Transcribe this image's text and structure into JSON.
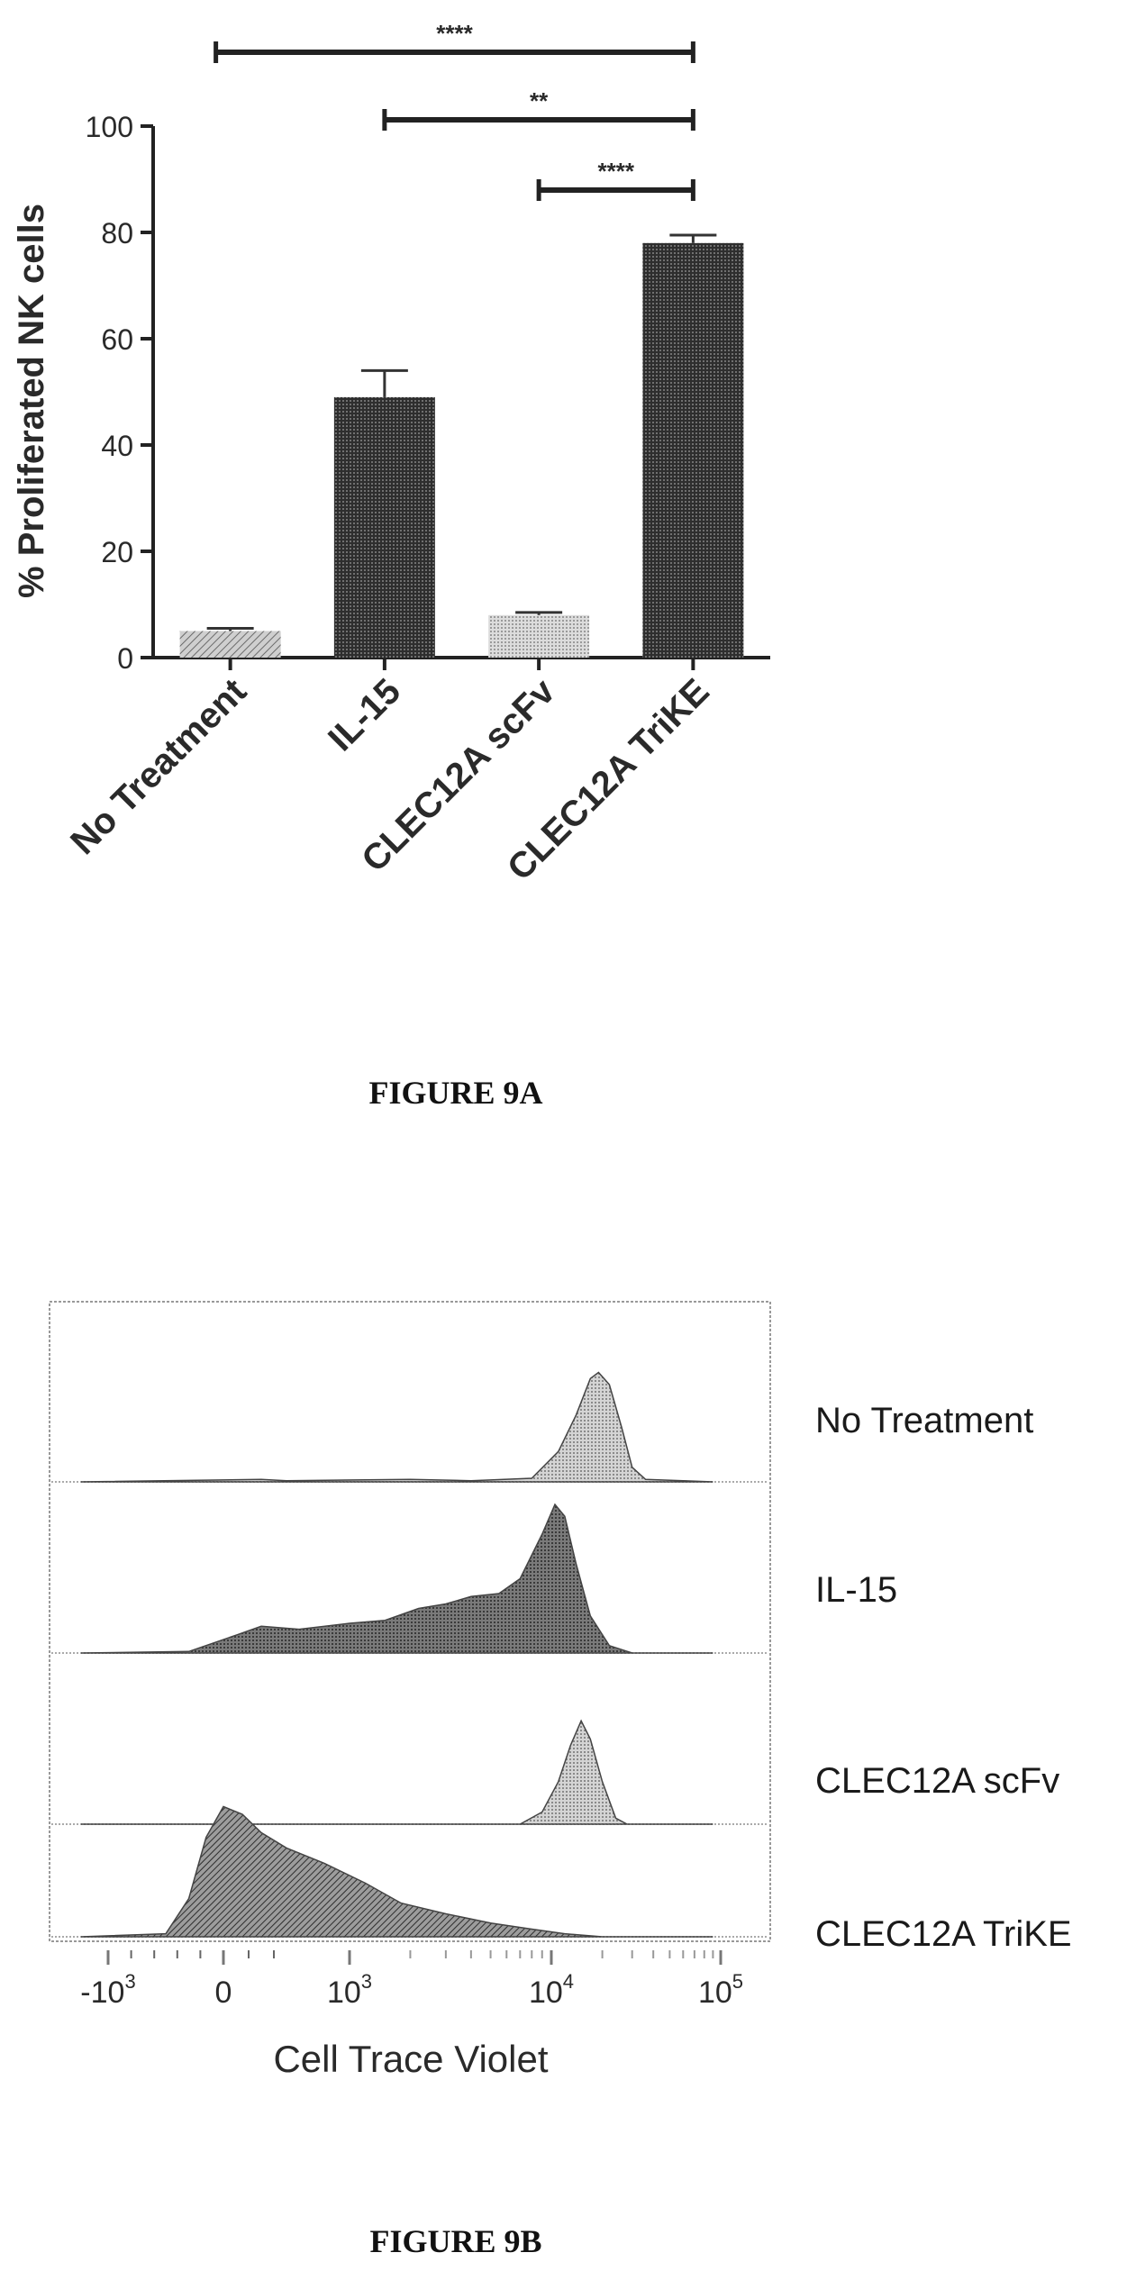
{
  "chart_data": [
    {
      "type": "bar",
      "ylabel": "% Proliferated NK cells",
      "ylim": [
        0,
        100
      ],
      "yticks": [
        "0",
        "20",
        "40",
        "60",
        "80",
        "100"
      ],
      "categories": [
        "No Treatment",
        "IL-15",
        "CLEC12A scFv",
        "CLEC12A TriKE"
      ],
      "values": [
        5,
        49,
        8,
        78
      ],
      "error": [
        0.5,
        5,
        0.5,
        1.5
      ],
      "fills": [
        "hatch-light",
        "dark-dots",
        "light-dots",
        "dark-dots"
      ],
      "significance": [
        {
          "from": 0,
          "to": 3,
          "label": "****",
          "level": 0
        },
        {
          "from": 1,
          "to": 3,
          "label": "**",
          "level": 1
        },
        {
          "from": 2,
          "to": 3,
          "label": "****",
          "level": 2
        }
      ],
      "caption": "FIGURE 9A"
    },
    {
      "type": "area",
      "xlabel": "Cell Trace Violet",
      "xticks": [
        {
          "base": "-10",
          "exp": "3",
          "value": -1000
        },
        {
          "base": "0",
          "exp": "",
          "value": 0
        },
        {
          "base": "10",
          "exp": "3",
          "value": 1000
        },
        {
          "base": "10",
          "exp": "4",
          "value": 10000
        },
        {
          "base": "10",
          "exp": "5",
          "value": 100000
        }
      ],
      "series": [
        {
          "name": "No Treatment",
          "fill": "light",
          "points": [
            [
              -1500,
              0
            ],
            [
              300,
              0.02
            ],
            [
              500,
              0.01
            ],
            [
              2000,
              0.02
            ],
            [
              4000,
              0.01
            ],
            [
              8000,
              0.03
            ],
            [
              11000,
              0.25
            ],
            [
              14000,
              0.55
            ],
            [
              17000,
              0.85
            ],
            [
              19000,
              0.9
            ],
            [
              22000,
              0.8
            ],
            [
              26000,
              0.45
            ],
            [
              30000,
              0.12
            ],
            [
              36000,
              0.02
            ],
            [
              60000,
              0.01
            ],
            [
              90000,
              0
            ]
          ]
        },
        {
          "name": "IL-15",
          "fill": "dark",
          "points": [
            [
              -1500,
              0
            ],
            [
              -300,
              0.01
            ],
            [
              100,
              0.12
            ],
            [
              300,
              0.18
            ],
            [
              600,
              0.16
            ],
            [
              1000,
              0.2
            ],
            [
              1500,
              0.22
            ],
            [
              2200,
              0.3
            ],
            [
              3000,
              0.33
            ],
            [
              4000,
              0.38
            ],
            [
              5500,
              0.4
            ],
            [
              7000,
              0.5
            ],
            [
              9000,
              0.8
            ],
            [
              10500,
              1.0
            ],
            [
              12000,
              0.92
            ],
            [
              14000,
              0.6
            ],
            [
              17000,
              0.25
            ],
            [
              22000,
              0.05
            ],
            [
              30000,
              0
            ],
            [
              90000,
              0
            ]
          ]
        },
        {
          "name": "CLEC12A scFv",
          "fill": "light",
          "points": [
            [
              -1500,
              0
            ],
            [
              7000,
              0
            ],
            [
              9000,
              0.1
            ],
            [
              11000,
              0.35
            ],
            [
              13000,
              0.65
            ],
            [
              15000,
              0.85
            ],
            [
              17000,
              0.7
            ],
            [
              20000,
              0.35
            ],
            [
              24000,
              0.05
            ],
            [
              28000,
              0
            ],
            [
              90000,
              0
            ]
          ]
        },
        {
          "name": "CLEC12A TriKE",
          "fill": "hatch",
          "points": [
            [
              -1500,
              0
            ],
            [
              -500,
              0.02
            ],
            [
              -300,
              0.25
            ],
            [
              -150,
              0.65
            ],
            [
              0,
              0.85
            ],
            [
              150,
              0.8
            ],
            [
              300,
              0.68
            ],
            [
              500,
              0.58
            ],
            [
              800,
              0.48
            ],
            [
              1200,
              0.35
            ],
            [
              1800,
              0.22
            ],
            [
              3000,
              0.15
            ],
            [
              5000,
              0.09
            ],
            [
              8000,
              0.05
            ],
            [
              12000,
              0.02
            ],
            [
              20000,
              0
            ],
            [
              90000,
              0
            ]
          ]
        }
      ],
      "caption": "FIGURE 9B"
    }
  ]
}
